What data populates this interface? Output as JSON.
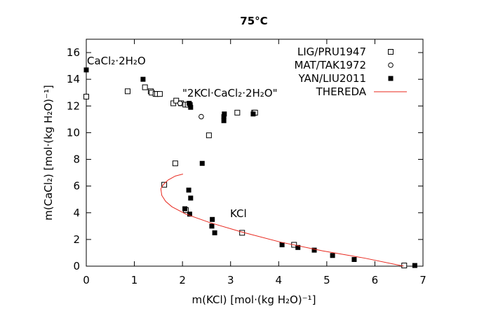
{
  "chart_data": {
    "type": "scatter",
    "title": "75°C",
    "xlabel": "m(KCl) [mol·(kg H₂O)⁻¹]",
    "ylabel": "m(CaCl₂) [mol·(kg H₂O)⁻¹]",
    "xlim": [
      0,
      7
    ],
    "ylim": [
      0,
      17
    ],
    "xticks": [
      0,
      1,
      2,
      3,
      4,
      5,
      6,
      7
    ],
    "yticks": [
      0,
      2,
      4,
      6,
      8,
      10,
      12,
      14,
      16
    ],
    "grid": false,
    "legend_position": "top-right",
    "annotations": [
      {
        "text": "CaCl₂·2H₂O",
        "x": 0.0,
        "y": 15.2
      },
      {
        "text": "\"2KCl·CaCl₂·2H₂O\"",
        "x": 1.99,
        "y": 12.6
      },
      {
        "text": "KCl",
        "x": 2.97,
        "y": 3.8
      }
    ],
    "series": [
      {
        "name": "LIG/PRU1947",
        "marker": "open-square",
        "color": "#000000",
        "points": [
          [
            0,
            12.7
          ],
          [
            0.86,
            13.1
          ],
          [
            1.22,
            13.4
          ],
          [
            1.34,
            13.1
          ],
          [
            1.36,
            13.0
          ],
          [
            1.44,
            12.9
          ],
          [
            1.47,
            12.9
          ],
          [
            1.53,
            12.9
          ],
          [
            1.81,
            12.2
          ],
          [
            1.87,
            12.4
          ],
          [
            1.97,
            12.2
          ],
          [
            2.06,
            12.1
          ],
          [
            2.11,
            12.1
          ],
          [
            3.14,
            11.5
          ],
          [
            3.49,
            11.5
          ],
          [
            3.51,
            11.5
          ],
          [
            2.55,
            9.8
          ],
          [
            1.85,
            7.7
          ],
          [
            1.62,
            6.1
          ],
          [
            2.07,
            4.2
          ],
          [
            3.24,
            2.5
          ],
          [
            4.32,
            1.6
          ],
          [
            6.61,
            0.05
          ]
        ]
      },
      {
        "name": "MAT/TAK1972",
        "marker": "open-circle",
        "color": "#000000",
        "points": [
          [
            1.95,
            12.2
          ],
          [
            2.39,
            11.2
          ]
        ]
      },
      {
        "name": "YAN/LIU2011",
        "marker": "filled-square",
        "color": "#000000",
        "points": [
          [
            0,
            14.7
          ],
          [
            1.18,
            14.0
          ],
          [
            2.14,
            12.2
          ],
          [
            2.16,
            12.1
          ],
          [
            2.17,
            11.9
          ],
          [
            2.87,
            11.4
          ],
          [
            2.86,
            11.2
          ],
          [
            2.86,
            10.9
          ],
          [
            3.47,
            11.4
          ],
          [
            2.41,
            7.7
          ],
          [
            2.13,
            5.7
          ],
          [
            2.17,
            5.1
          ],
          [
            2.05,
            4.3
          ],
          [
            2.15,
            3.9
          ],
          [
            2.62,
            3.5
          ],
          [
            2.61,
            3.0
          ],
          [
            2.67,
            2.5
          ],
          [
            4.07,
            1.6
          ],
          [
            4.4,
            1.4
          ],
          [
            4.74,
            1.2
          ],
          [
            5.12,
            0.8
          ],
          [
            5.57,
            0.5
          ],
          [
            6.83,
            0.05
          ]
        ]
      },
      {
        "name": "THEREDA",
        "marker": "line",
        "color": "#e8281e",
        "points": [
          [
            2.01,
            6.9
          ],
          [
            1.85,
            6.75
          ],
          [
            1.7,
            6.45
          ],
          [
            1.6,
            6.1
          ],
          [
            1.55,
            5.8
          ],
          [
            1.57,
            5.3
          ],
          [
            1.65,
            4.85
          ],
          [
            1.78,
            4.45
          ],
          [
            2.07,
            3.9
          ],
          [
            2.58,
            3.25
          ],
          [
            3.24,
            2.55
          ],
          [
            4.04,
            1.8
          ],
          [
            4.91,
            1.15
          ],
          [
            5.79,
            0.6
          ],
          [
            6.6,
            0.0
          ]
        ]
      }
    ]
  }
}
